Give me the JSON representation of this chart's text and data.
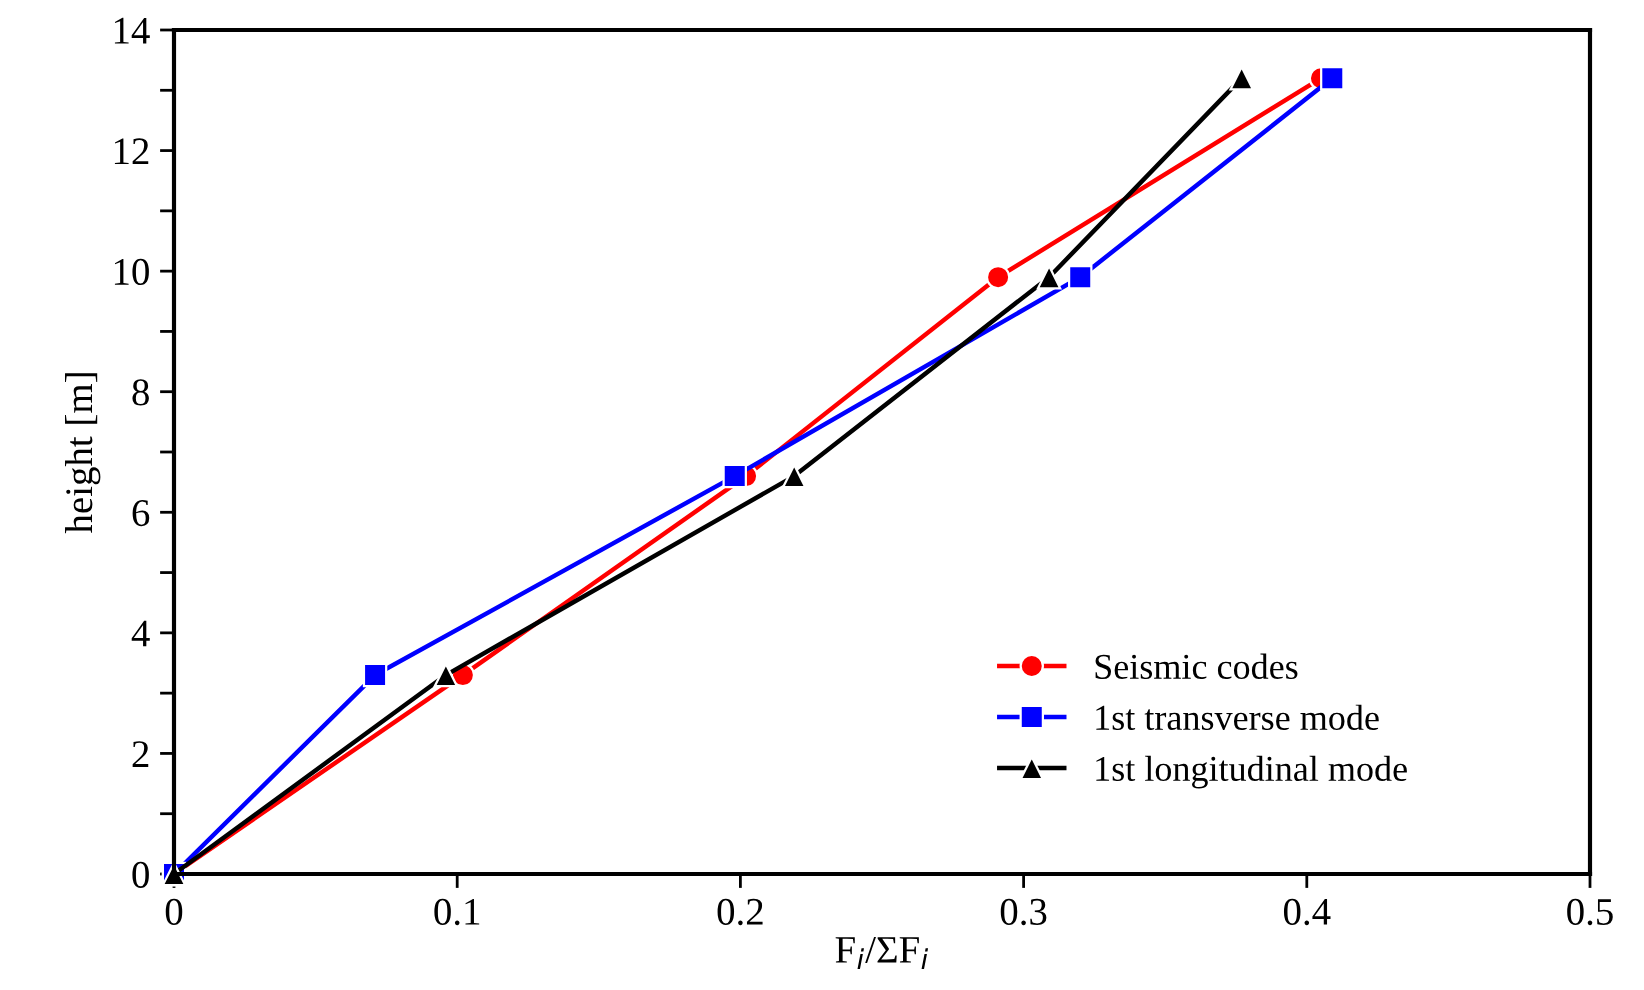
{
  "chart_data": {
    "type": "line",
    "xlabel": "F$_{i}$/ΣF$_{i}$",
    "ylabel": "height [m]",
    "xlim": [
      0,
      0.5
    ],
    "xticks": [
      0,
      0.1,
      0.2,
      0.3,
      0.4,
      0.5
    ],
    "ylim": [
      0,
      14
    ],
    "yticks": [
      0,
      {
        "value": 1,
        "label": null
      },
      2,
      {
        "value": 3,
        "label": null
      },
      4,
      {
        "value": 5,
        "label": null
      },
      6,
      {
        "value": 7,
        "label": null
      },
      8,
      {
        "value": 9,
        "label": null
      },
      10,
      {
        "value": 11,
        "label": null
      },
      12,
      {
        "value": 13,
        "label": null
      },
      14
    ],
    "grid": false,
    "legend": "bottom right",
    "line_style": "solid",
    "series": [
      {
        "name": "Seismic codes",
        "color": "#ff0000",
        "marker": "circle",
        "x": [
          0,
          0.102,
          0.202,
          0.291,
          0.405
        ],
        "values": [
          0,
          3.3,
          6.6,
          9.9,
          13.2
        ]
      },
      {
        "name": "1st transverse mode",
        "color": "#0000ff",
        "marker": "square",
        "x": [
          0,
          0.071,
          0.198,
          0.32,
          0.409
        ],
        "values": [
          0,
          3.3,
          6.6,
          9.9,
          13.2
        ]
      },
      {
        "name": "1st longitudinal mode",
        "color": "#000000",
        "marker": "triangle",
        "x": [
          0,
          0.096,
          0.219,
          0.309,
          0.377
        ],
        "values": [
          0,
          3.3,
          6.6,
          9.9,
          13.2
        ]
      }
    ]
  }
}
